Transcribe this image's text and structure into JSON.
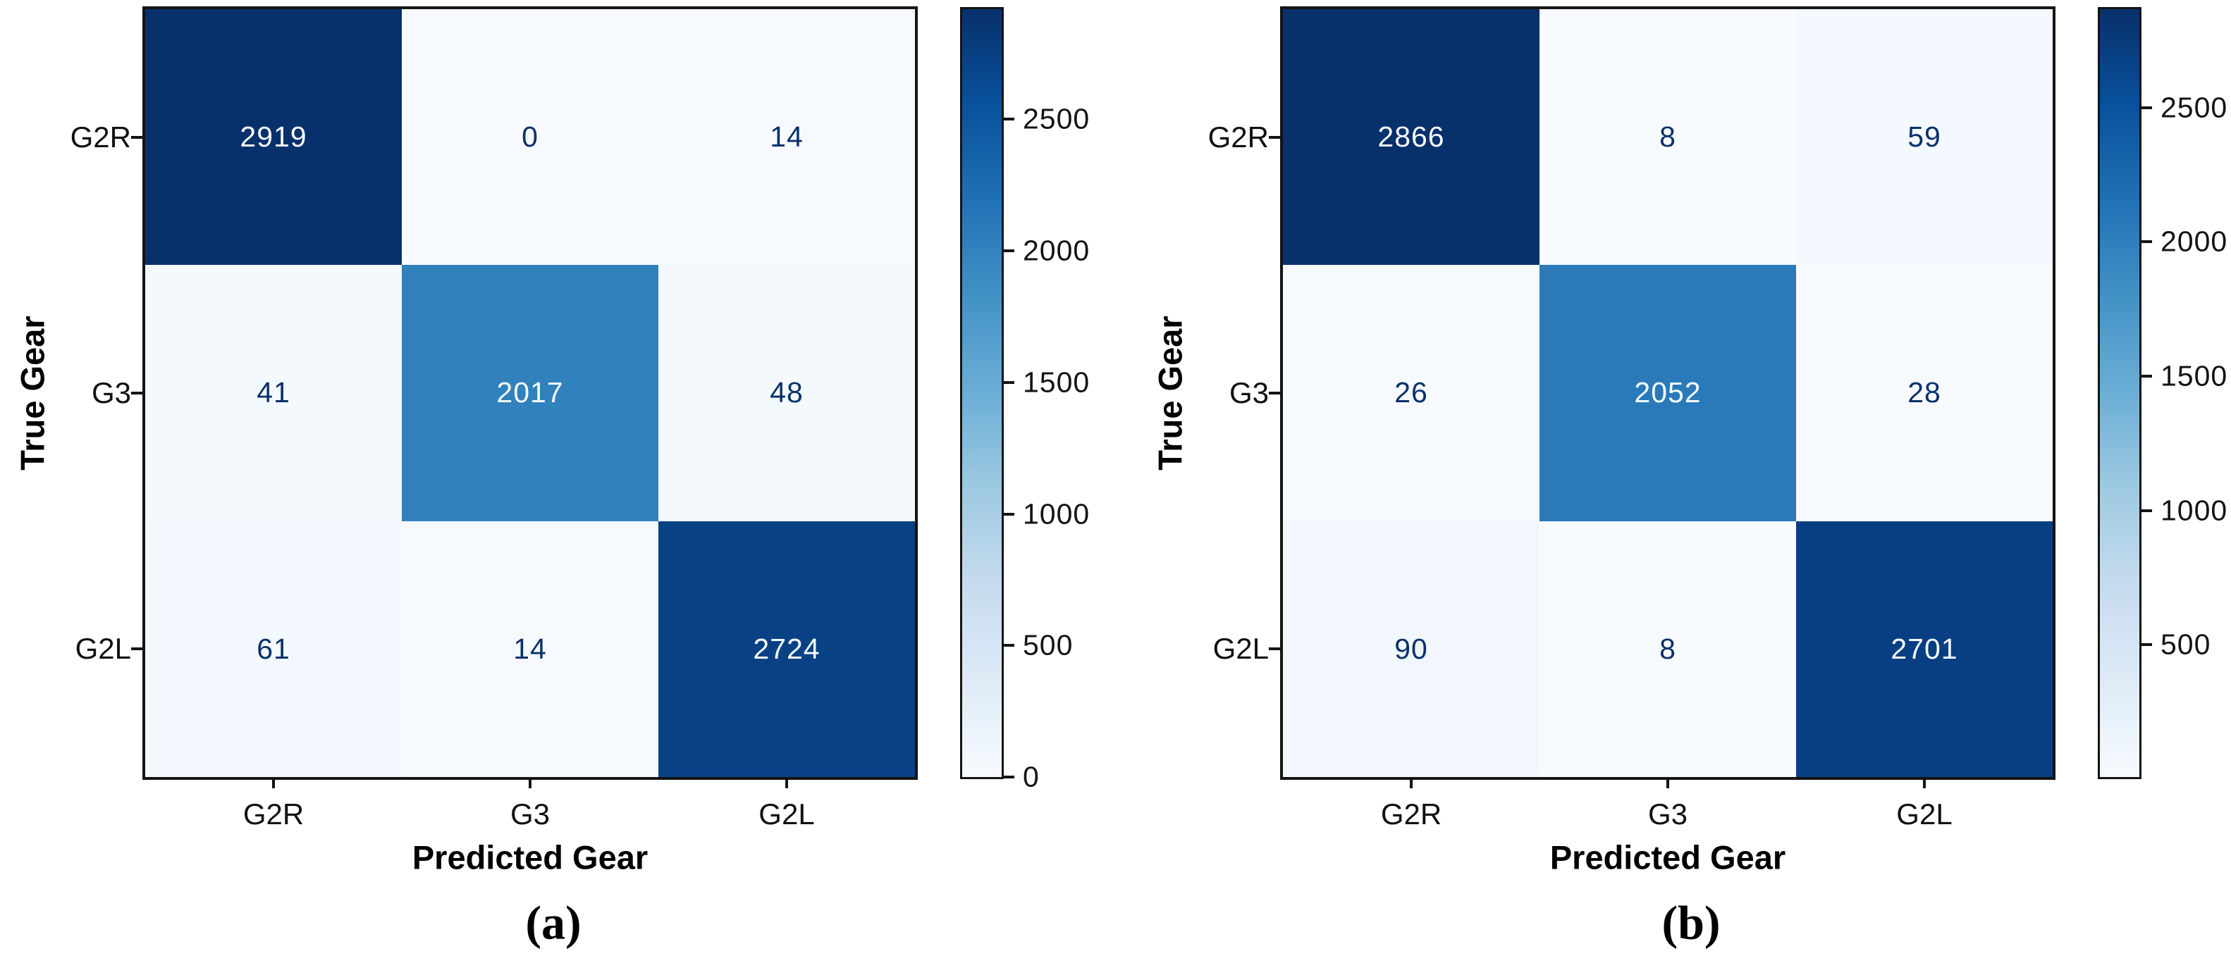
{
  "figure": {
    "background": "#ffffff",
    "colormap": {
      "name": "Blues",
      "stops": [
        [
          0,
          "#f7fbff"
        ],
        [
          0.125,
          "#deebf7"
        ],
        [
          0.25,
          "#c6dbef"
        ],
        [
          0.375,
          "#9ecae1"
        ],
        [
          0.5,
          "#6baed6"
        ],
        [
          0.625,
          "#4292c6"
        ],
        [
          0.75,
          "#2171b5"
        ],
        [
          0.875,
          "#08519c"
        ],
        [
          1,
          "#08306b"
        ]
      ],
      "dark_text": "#08306b",
      "light_text": "#f7fbff",
      "spine_color": "#141414"
    },
    "panels": [
      {
        "caption": "(a)",
        "xlabel": "Predicted Gear",
        "ylabel": "True Gear",
        "x_tick_labels": [
          "G2R",
          "G3",
          "G2L"
        ],
        "y_tick_labels": [
          "G2R",
          "G3",
          "G2L"
        ],
        "matrix": [
          [
            2919,
            0,
            14
          ],
          [
            41,
            2017,
            48
          ],
          [
            61,
            14,
            2724
          ]
        ],
        "colorbar_tick_labels": [
          "2500",
          "2000",
          "1500",
          "1000",
          "500",
          "0"
        ],
        "colorbar_tick_values": [
          2500,
          2000,
          1500,
          1000,
          500,
          0
        ]
      },
      {
        "caption": "(b)",
        "xlabel": "Predicted Gear",
        "ylabel": "True Gear",
        "x_tick_labels": [
          "G2R",
          "G3",
          "G2L"
        ],
        "y_tick_labels": [
          "G2R",
          "G3",
          "G2L"
        ],
        "matrix": [
          [
            2866,
            8,
            59
          ],
          [
            26,
            2052,
            28
          ],
          [
            90,
            8,
            2701
          ]
        ],
        "colorbar_tick_labels": [
          "2500",
          "2000",
          "1500",
          "1000",
          "500"
        ],
        "colorbar_tick_values": [
          2500,
          2000,
          1500,
          1000,
          500
        ]
      }
    ]
  },
  "chart_data": [
    {
      "type": "heatmap",
      "caption": "(a)",
      "title": "",
      "xlabel": "Predicted Gear",
      "ylabel": "True Gear",
      "x_categories": [
        "G2R",
        "G3",
        "G2L"
      ],
      "y_categories": [
        "G2R",
        "G3",
        "G2L"
      ],
      "matrix": [
        [
          2919,
          0,
          14
        ],
        [
          41,
          2017,
          48
        ],
        [
          61,
          14,
          2724
        ]
      ],
      "colormap": "Blues",
      "value_range": [
        0,
        2919
      ],
      "colorbar_ticks": [
        0,
        500,
        1000,
        1500,
        2000,
        2500
      ],
      "legend_position": "right-colorbar",
      "grid": false
    },
    {
      "type": "heatmap",
      "caption": "(b)",
      "title": "",
      "xlabel": "Predicted Gear",
      "ylabel": "True Gear",
      "x_categories": [
        "G2R",
        "G3",
        "G2L"
      ],
      "y_categories": [
        "G2R",
        "G3",
        "G2L"
      ],
      "matrix": [
        [
          2866,
          8,
          59
        ],
        [
          26,
          2052,
          28
        ],
        [
          90,
          8,
          2701
        ]
      ],
      "colormap": "Blues",
      "value_range": [
        8,
        2866
      ],
      "colorbar_ticks": [
        500,
        1000,
        1500,
        2000,
        2500
      ],
      "legend_position": "right-colorbar",
      "grid": false
    }
  ]
}
